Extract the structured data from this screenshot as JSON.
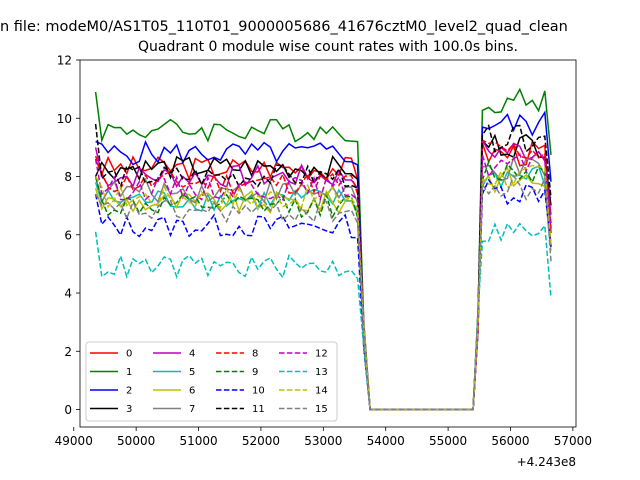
{
  "header": {
    "suptitle": "n file: modeM0/AS1T05_110T01_9000005686_41676cztM0_level2_quad_clean",
    "title": "Quadrant 0 module wise count rates with 100.0s bins."
  },
  "chart_data": {
    "type": "line",
    "title": "Quadrant 0 module wise count rates with 100.0s bins.",
    "xlabel": "",
    "ylabel": "",
    "x_offset_label": "+4.243e8",
    "xlim": [
      49100,
      57050
    ],
    "ylim": [
      -0.6,
      12.0
    ],
    "xticks": [
      49000,
      50000,
      51000,
      52000,
      53000,
      54000,
      55000,
      56000,
      57000
    ],
    "xtick_labels": [
      "49000",
      "50000",
      "51000",
      "52000",
      "53000",
      "54000",
      "55000",
      "56000",
      "57000"
    ],
    "yticks": [
      0,
      2,
      4,
      6,
      8,
      10,
      12
    ],
    "ytick_labels": [
      "0",
      "2",
      "4",
      "6",
      "8",
      "10",
      "12"
    ],
    "grid": false,
    "legend_placement": "lower-left",
    "legend_columns": 4,
    "gap": {
      "start": 53500,
      "end": 55500,
      "value": 0
    },
    "segment1": {
      "x_start": 49350,
      "x_end": 53550,
      "x_step": 100
    },
    "segment2": {
      "x_start": 55550,
      "x_end": 56650,
      "x_step": 100
    },
    "series": [
      {
        "name": "0",
        "color": "#ff0000",
        "dash": "solid",
        "level1": 8.3,
        "level2": 8.8,
        "start": 8.6
      },
      {
        "name": "1",
        "color": "#008000",
        "dash": "solid",
        "level1": 9.6,
        "level2": 10.6,
        "start": 10.9
      },
      {
        "name": "2",
        "color": "#0000ff",
        "dash": "solid",
        "level1": 8.8,
        "level2": 9.8,
        "start": 9.2
      },
      {
        "name": "3",
        "color": "#000000",
        "dash": "solid",
        "level1": 8.3,
        "level2": 9.1,
        "start": 8.0
      },
      {
        "name": "4",
        "color": "#bf00bf",
        "dash": "solid",
        "level1": 8.0,
        "level2": 8.9,
        "start": 9.0
      },
      {
        "name": "5",
        "color": "#00bfbf",
        "dash": "solid",
        "level1": 7.2,
        "level2": 8.0,
        "start": 7.8
      },
      {
        "name": "6",
        "color": "#bfbf00",
        "dash": "solid",
        "level1": 7.1,
        "level2": 7.9,
        "start": 7.6
      },
      {
        "name": "7",
        "color": "#808080",
        "dash": "solid",
        "level1": 7.5,
        "level2": 8.2,
        "start": 8.0
      },
      {
        "name": "8",
        "color": "#ff0000",
        "dash": "dashed",
        "level1": 7.8,
        "level2": 8.9,
        "start": 8.7
      },
      {
        "name": "9",
        "color": "#008000",
        "dash": "dashed",
        "level1": 7.0,
        "level2": 8.2,
        "start": 8.0
      },
      {
        "name": "10",
        "color": "#0000ff",
        "dash": "dashed",
        "level1": 6.3,
        "level2": 7.5,
        "start": 7.4
      },
      {
        "name": "11",
        "color": "#000000",
        "dash": "dashed",
        "level1": 8.0,
        "level2": 9.3,
        "start": 9.8
      },
      {
        "name": "12",
        "color": "#bf00bf",
        "dash": "dashed",
        "level1": 7.6,
        "level2": 8.4,
        "start": 8.6
      },
      {
        "name": "13",
        "color": "#00bfbf",
        "dash": "dashed",
        "level1": 4.9,
        "level2": 6.1,
        "start": 6.1
      },
      {
        "name": "14",
        "color": "#bfbf00",
        "dash": "dashed",
        "level1": 7.3,
        "level2": 8.0,
        "start": 8.0
      },
      {
        "name": "15",
        "color": "#808080",
        "dash": "dashed",
        "level1": 6.8,
        "level2": 7.6,
        "start": 7.4
      }
    ]
  }
}
